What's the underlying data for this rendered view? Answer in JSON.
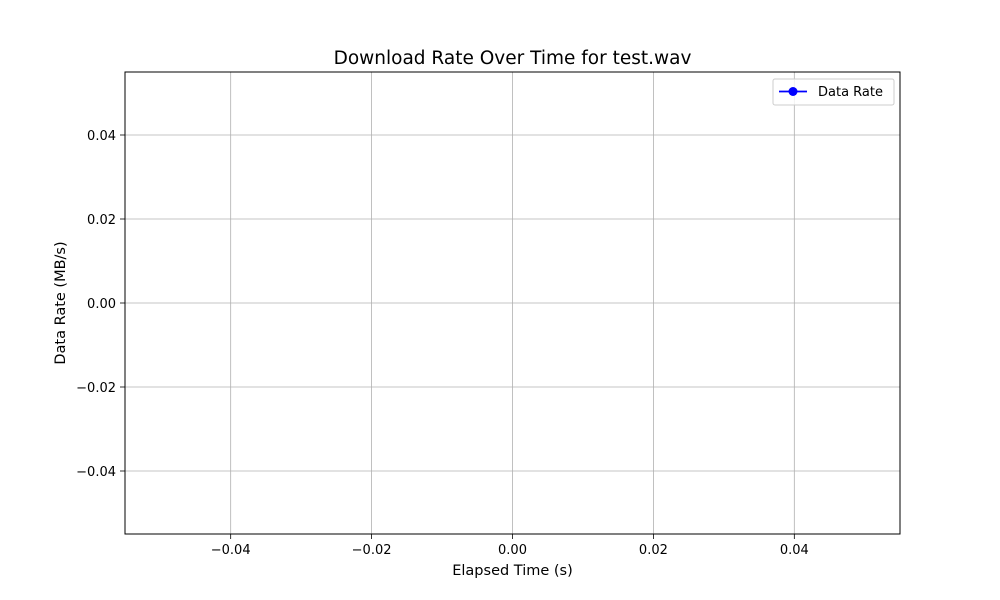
{
  "chart_data": {
    "type": "line",
    "title": "Download Rate Over Time for test.wav",
    "xlabel": "Elapsed Time (s)",
    "ylabel": "Data Rate (MB/s)",
    "xlim": [
      -0.055,
      0.055
    ],
    "ylim": [
      -0.055,
      0.055
    ],
    "xticks": [
      -0.04,
      -0.02,
      0.0,
      0.02,
      0.04
    ],
    "yticks": [
      -0.04,
      -0.02,
      0.0,
      0.02,
      0.04
    ],
    "xtick_labels": [
      "−0.04",
      "−0.02",
      "0.00",
      "0.02",
      "0.04"
    ],
    "ytick_labels": [
      "−0.04",
      "−0.02",
      "0.00",
      "0.02",
      "0.04"
    ],
    "grid": true,
    "legend_position": "top-right",
    "series": [
      {
        "name": "Data Rate",
        "color": "#0000ff",
        "marker": "circle",
        "x": [],
        "y": []
      }
    ]
  }
}
